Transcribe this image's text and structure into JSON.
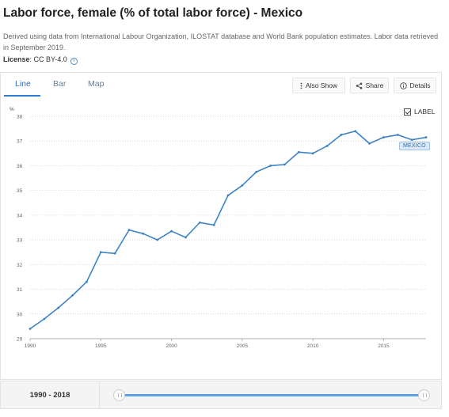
{
  "header": {
    "title": "Labor force, female (% of total labor force) - Mexico",
    "description": "Derived using data from International Labour Organization, ILOSTAT database and World Bank population estimates. Labor data retrieved in September 2019.",
    "license_label": "License",
    "license_value": ": CC BY-4.0",
    "info_icon": "info-icon"
  },
  "tabs": [
    {
      "label": "Line",
      "active": true
    },
    {
      "label": "Bar",
      "active": false
    },
    {
      "label": "Map",
      "active": false
    }
  ],
  "toolbar": {
    "also_show": "Also Show",
    "share": "Share",
    "details": "Details"
  },
  "label_toggle": {
    "text": "LABEL",
    "checked": true
  },
  "series_label": "MEXICO",
  "colors": {
    "line": "#3d84c6",
    "accent": "#2b7bd0",
    "grid": "#c8c8c8"
  },
  "chart_data": {
    "type": "line",
    "title": "",
    "xlabel": "",
    "ylabel": "%",
    "xlim": [
      1990,
      2018
    ],
    "ylim": [
      29,
      38
    ],
    "x_ticks": [
      1990,
      1995,
      2000,
      2005,
      2010,
      2015
    ],
    "y_ticks": [
      29,
      30,
      31,
      32,
      33,
      34,
      35,
      36,
      37,
      38
    ],
    "grid": "horizontal dotted",
    "series": [
      {
        "name": "MEXICO",
        "x": [
          1990,
          1991,
          1992,
          1993,
          1994,
          1995,
          1996,
          1997,
          1998,
          1999,
          2000,
          2001,
          2002,
          2003,
          2004,
          2005,
          2006,
          2007,
          2008,
          2009,
          2010,
          2011,
          2012,
          2013,
          2014,
          2015,
          2016,
          2017,
          2018
        ],
        "values": [
          29.4,
          29.8,
          30.25,
          30.75,
          31.3,
          32.5,
          32.45,
          33.4,
          33.25,
          33.0,
          33.35,
          33.1,
          33.7,
          33.6,
          34.8,
          35.2,
          35.75,
          36.0,
          36.05,
          36.55,
          36.5,
          36.8,
          37.25,
          37.4,
          36.9,
          37.15,
          37.25,
          37.05,
          37.15
        ]
      }
    ]
  },
  "footer": {
    "range_label": "1990 - 2018",
    "range_start_fraction": 0.0,
    "range_end_fraction": 1.0
  }
}
